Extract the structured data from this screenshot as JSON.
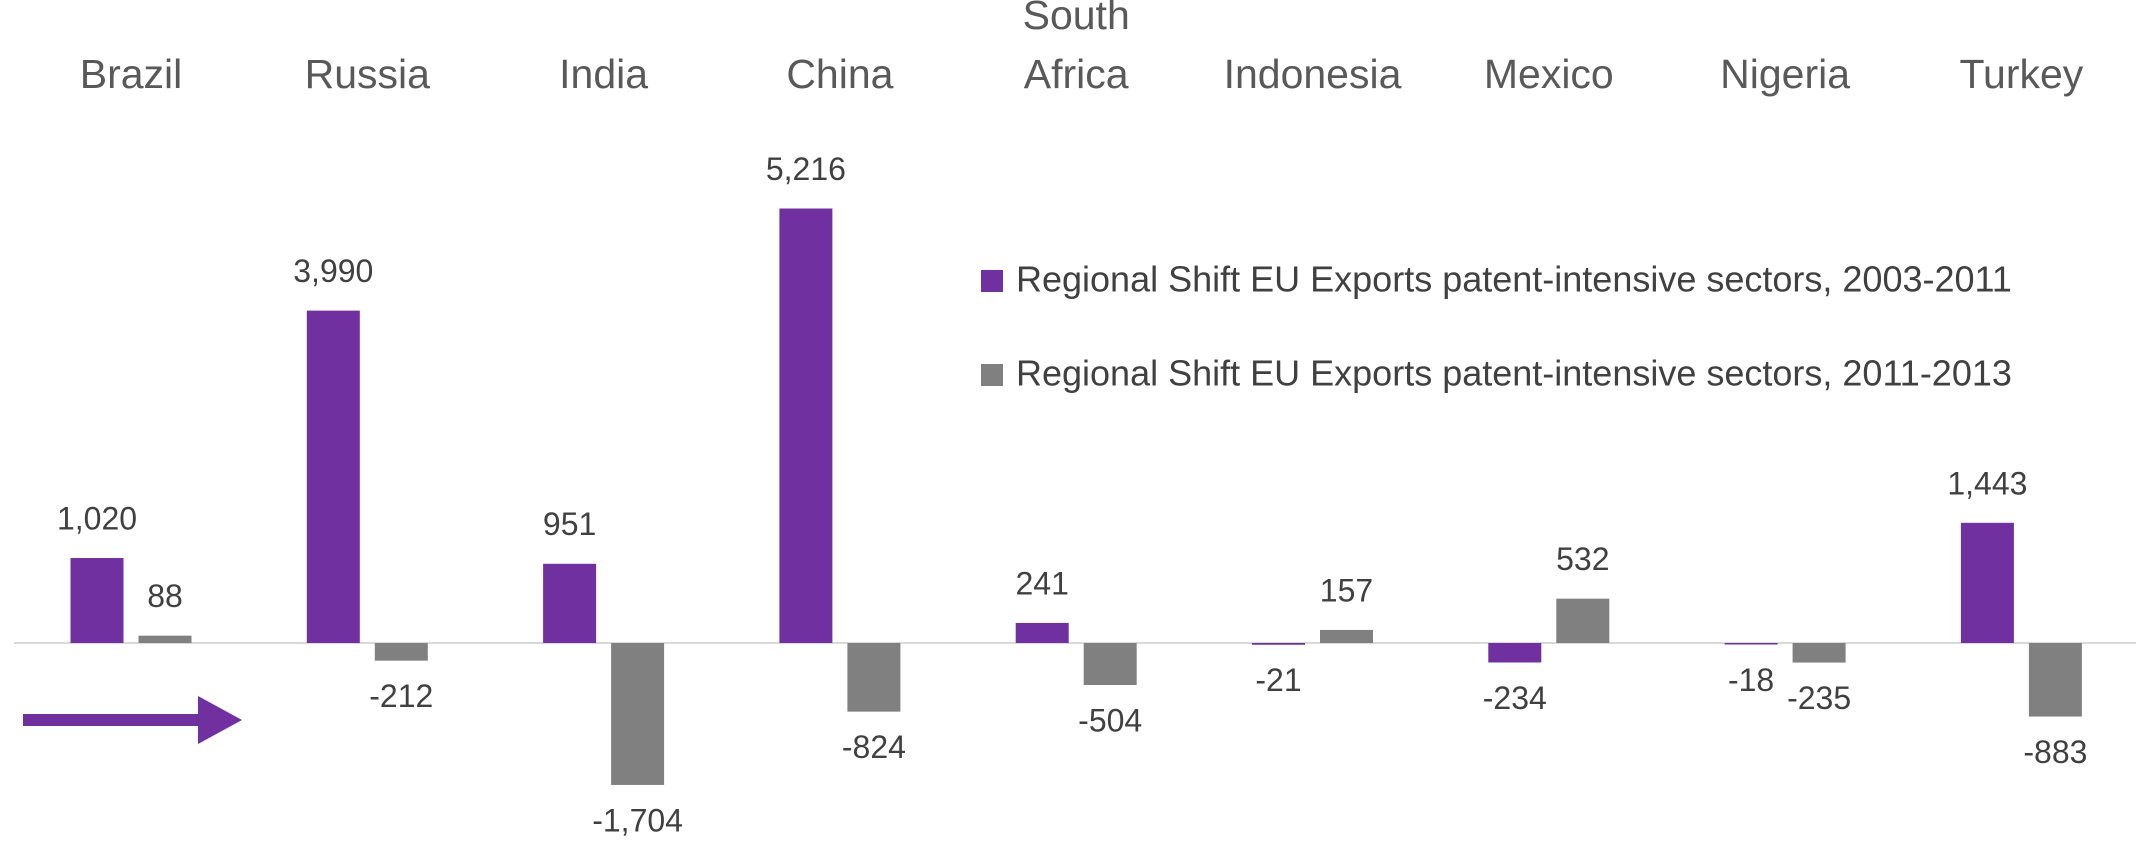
{
  "chart_data": {
    "type": "bar",
    "categories": [
      "Brazil",
      "Russia",
      "India",
      "China",
      "South Africa",
      "Indonesia",
      "Mexico",
      "Nigeria",
      "Turkey"
    ],
    "series": [
      {
        "name": "Regional Shift EU Exports patent-intensive sectors, 2003-2011",
        "color": "#7030a0",
        "values": [
          1020,
          3990,
          951,
          5216,
          241,
          -21,
          -234,
          -18,
          1443
        ],
        "value_labels": [
          "1,020",
          "3,990",
          "951",
          "5,216",
          "241",
          "-21",
          "-234",
          "-18",
          "1,443"
        ]
      },
      {
        "name": "Regional Shift EU Exports patent-intensive sectors, 2011-2013",
        "color": "#808080",
        "values": [
          88,
          -212,
          -1704,
          -824,
          -504,
          157,
          532,
          -235,
          -883
        ],
        "value_labels": [
          "88",
          "-212",
          "-1,704",
          "-824",
          "-504",
          "157",
          "532",
          "-235",
          "-883"
        ]
      }
    ]
  }
}
